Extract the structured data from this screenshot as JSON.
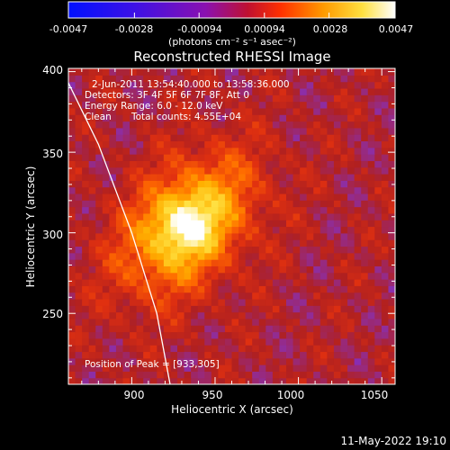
{
  "colorbar": {
    "tick_labels": [
      "-0.0047",
      "-0.0028",
      "-0.00094",
      "0.00094",
      "0.0028",
      "0.0047"
    ],
    "tick_values": [
      -0.0047,
      -0.0028,
      -0.00094,
      0.00094,
      0.0028,
      0.0047
    ],
    "range": [
      -0.0047,
      0.0047
    ]
  },
  "units_label": "(photons cm⁻² s⁻¹ asec⁻²)",
  "title": "Reconstructed RHESSI Image",
  "info": {
    "time_range": "2-Jun-2011 13:54:40.000 to 13:58:36.000",
    "detectors": "Detectors: 3F 4F 5F 6F 7F 8F, Att 0",
    "energy": "Energy Range: 6.0 - 12.0 keV",
    "method": "Clean",
    "counts": "Total counts: 4.55E+04",
    "peak": "Position of Peak = [933,305]"
  },
  "footer_date": "11-May-2022 19:10",
  "colors": {
    "background": "#000000",
    "colormap": [
      "#0010ff",
      "#3c10e6",
      "#6a0fd4",
      "#8a2fb0",
      "#b02020",
      "#e03010",
      "#ff6a00",
      "#ffb000",
      "#ffe040",
      "#ffffff"
    ]
  },
  "chart_data": {
    "type": "heatmap",
    "title": "Reconstructed RHESSI Image",
    "xlabel": "Heliocentric X (arcsec)",
    "ylabel": "Heliocentric Y (arcsec)",
    "xlim": [
      862,
      1058
    ],
    "ylim": [
      206,
      402
    ],
    "x_ticks": [
      900,
      950,
      1000,
      1050
    ],
    "y_ticks": [
      250,
      300,
      350,
      400
    ],
    "x_tick_labels": [
      "900",
      "950",
      "1000",
      "1050"
    ],
    "y_tick_labels": [
      "250",
      "300",
      "350",
      "400"
    ],
    "peak": [
      933,
      305
    ],
    "peak_value": 0.0047,
    "value_range": [
      -0.0047,
      0.0047
    ],
    "limb_curve": {
      "x": [
        862,
        880,
        900,
        915,
        923
      ],
      "y": [
        393,
        355,
        300,
        250,
        206
      ]
    }
  }
}
